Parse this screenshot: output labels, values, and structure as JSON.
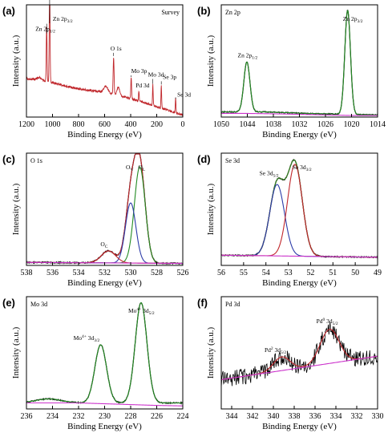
{
  "colors": {
    "survey": "#c0262b",
    "raw": "#000000",
    "envelope": "#c0262b",
    "fit_green": "#228b22",
    "fit_blue": "#2b3aa8",
    "fit_red": "#c0262b",
    "background_line": "#cc33cc"
  },
  "chart_data": [
    {
      "id": "a",
      "type": "line",
      "panel_label": "(a)",
      "title": "Survey",
      "xlabel": "Binding Energy (eV)",
      "ylabel": "Intensity (a.u.)",
      "xlim": [
        1200,
        0
      ],
      "reversed_x": true,
      "xticks": [
        1200,
        1000,
        800,
        600,
        400,
        200,
        0
      ],
      "annotations": [
        {
          "text": "Zn 2p",
          "sub": "3/2",
          "x": 1022
        },
        {
          "text": "Zn 2p",
          "sub": "1/2",
          "x": 1045
        },
        {
          "text": "O 1s",
          "x": 531
        },
        {
          "text": "Mo 3p",
          "x": 396
        },
        {
          "text": "Pd 3d",
          "x": 337
        },
        {
          "text": "Mo 3d",
          "x": 230
        },
        {
          "text": "Se 3p",
          "x": 165
        },
        {
          "text": "Se 3d",
          "x": 55
        }
      ],
      "series": [
        {
          "style": "survey",
          "peaks": [
            [
              1022,
              1.0,
              3
            ],
            [
              1045,
              0.55,
              3
            ],
            [
              531,
              0.36,
              3.5
            ],
            [
              396,
              0.2,
              3
            ],
            [
              337,
              0.1,
              2.5
            ],
            [
              230,
              0.2,
              2.5
            ],
            [
              165,
              0.22,
              2.5
            ],
            [
              55,
              0.14,
              2.5
            ],
            [
              1100,
              0.03,
              20
            ],
            [
              590,
              0.06,
              15
            ],
            [
              495,
              0.08,
              10
            ]
          ],
          "baseline": [
            [
              1200,
              0.37
            ],
            [
              1000,
              0.33
            ],
            [
              800,
              0.27
            ],
            [
              600,
              0.24
            ],
            [
              400,
              0.18
            ],
            [
              200,
              0.1
            ],
            [
              0,
              0.02
            ]
          ],
          "noise": 0.01
        }
      ]
    },
    {
      "id": "b",
      "type": "line",
      "panel_label": "(b)",
      "title": "Zn 2p",
      "xlabel": "Binding Energy (eV)",
      "ylabel": "Intensity (a.u.)",
      "xlim": [
        1050,
        1014
      ],
      "reversed_x": true,
      "xticks": [
        1050,
        1044,
        1038,
        1032,
        1026,
        1020,
        1014
      ],
      "annotations": [
        {
          "text": "Zn 2p",
          "sub": "1/2",
          "x": 1044.0
        },
        {
          "text": "Zn 2p",
          "sub": "3/2",
          "x": 1020.5
        }
      ],
      "series": [
        {
          "style": "raw",
          "peaks": [
            [
              1044.1,
              0.48,
              0.7
            ],
            [
              1020.9,
              1.0,
              0.65
            ]
          ],
          "baseline": [
            [
              1050,
              0.05
            ],
            [
              1040,
              0.05
            ],
            [
              1030,
              0.035
            ],
            [
              1014,
              0.02
            ]
          ],
          "noise": 0.004
        },
        {
          "style": "fit_green",
          "peaks": [
            [
              1044.1,
              0.48,
              0.7
            ],
            [
              1020.9,
              1.0,
              0.65
            ]
          ],
          "baseline": [
            [
              1050,
              0.05
            ],
            [
              1040,
              0.05
            ],
            [
              1030,
              0.035
            ],
            [
              1014,
              0.02
            ]
          ]
        },
        {
          "style": "background_line",
          "peaks": [],
          "baseline": [
            [
              1050,
              0.035
            ],
            [
              1044,
              0.035
            ],
            [
              1036,
              0.03
            ],
            [
              1020,
              0.015
            ],
            [
              1014,
              0.015
            ]
          ]
        }
      ]
    },
    {
      "id": "c",
      "type": "line",
      "panel_label": "(c)",
      "title": "O 1s",
      "xlabel": "Binding Energy (eV)",
      "ylabel": "Intensity (a.u.)",
      "xlim": [
        538,
        526
      ],
      "reversed_x": true,
      "xticks": [
        538,
        536,
        534,
        532,
        530,
        528,
        526
      ],
      "annotations": [
        {
          "text": "O",
          "sub": "L",
          "x": 529.3
        },
        {
          "text": "O",
          "sub": "V",
          "x": 530.0
        },
        {
          "text": "O",
          "sub": "C",
          "x": 531.7
        }
      ],
      "series": [
        {
          "style": "raw",
          "peaks": [
            [
              529.3,
              0.96,
              0.42
            ],
            [
              530.0,
              0.6,
              0.4
            ],
            [
              531.7,
              0.12,
              0.55
            ]
          ],
          "baseline": [
            [
              538,
              0.03
            ],
            [
              526,
              0.02
            ]
          ],
          "noise": 0.006
        },
        {
          "style": "envelope",
          "peaks": [
            [
              529.3,
              0.96,
              0.42
            ],
            [
              530.0,
              0.6,
              0.4
            ],
            [
              531.7,
              0.12,
              0.55
            ]
          ],
          "baseline": [
            [
              538,
              0.03
            ],
            [
              526,
              0.02
            ]
          ]
        },
        {
          "style": "fit_green",
          "peaks": [
            [
              529.3,
              0.96,
              0.42
            ]
          ],
          "baseline": [
            [
              538,
              0.03
            ],
            [
              526,
              0.02
            ]
          ]
        },
        {
          "style": "fit_blue",
          "peaks": [
            [
              530.0,
              0.6,
              0.4
            ]
          ],
          "baseline": [
            [
              538,
              0.03
            ],
            [
              526,
              0.02
            ]
          ]
        },
        {
          "style": "fit_red",
          "peaks": [
            [
              531.7,
              0.12,
              0.55
            ]
          ],
          "baseline": [
            [
              538,
              0.03
            ],
            [
              526,
              0.02
            ]
          ]
        },
        {
          "style": "background_line",
          "peaks": [],
          "baseline": [
            [
              538,
              0.03
            ],
            [
              526,
              0.02
            ]
          ]
        }
      ]
    },
    {
      "id": "d",
      "type": "line",
      "panel_label": "(d)",
      "title": "Se 3d",
      "xlabel": "Binding Energy (eV)",
      "ylabel": "Intensity (a.u.)",
      "xlim": [
        56,
        49
      ],
      "reversed_x": true,
      "xticks": [
        56,
        55,
        54,
        53,
        52,
        51,
        50,
        49
      ],
      "annotations": [
        {
          "text": "Se 3d",
          "sub": "5/2",
          "x": 53.5
        },
        {
          "text": "Se 3d",
          "sub": "3/2",
          "x": 52.6
        }
      ],
      "series": [
        {
          "style": "raw",
          "peaks": [
            [
              53.5,
              0.7,
              0.33
            ],
            [
              52.7,
              0.9,
              0.33
            ]
          ],
          "baseline": [
            [
              56,
              0.1
            ],
            [
              49,
              0.08
            ]
          ],
          "noise": 0.005
        },
        {
          "style": "envelope",
          "peaks": [
            [
              53.5,
              0.7,
              0.33
            ],
            [
              52.7,
              0.9,
              0.33
            ]
          ],
          "baseline": [
            [
              56,
              0.1
            ],
            [
              49,
              0.08
            ]
          ]
        },
        {
          "style": "fit_green",
          "peaks": [
            [
              53.5,
              0.7,
              0.33
            ],
            [
              52.7,
              0.9,
              0.33
            ]
          ],
          "baseline": [
            [
              56,
              0.1
            ],
            [
              49,
              0.08
            ]
          ]
        },
        {
          "style": "fit_blue",
          "peaks": [
            [
              53.5,
              0.7,
              0.33
            ]
          ],
          "baseline": [
            [
              56,
              0.1
            ],
            [
              49,
              0.08
            ]
          ]
        },
        {
          "style": "fit_red",
          "peaks": [
            [
              52.7,
              0.9,
              0.33
            ]
          ],
          "baseline": [
            [
              56,
              0.1
            ],
            [
              49,
              0.08
            ]
          ]
        },
        {
          "style": "background_line",
          "peaks": [],
          "baseline": [
            [
              56,
              0.1
            ],
            [
              49,
              0.08
            ]
          ]
        }
      ]
    },
    {
      "id": "e",
      "type": "line",
      "panel_label": "(e)",
      "title": "Mo 3d",
      "xlabel": "Binding Energy (eV)",
      "ylabel": "Intensity (a.u.)",
      "xlim": [
        236,
        224
      ],
      "reversed_x": true,
      "xticks": [
        236,
        234,
        232,
        230,
        228,
        226,
        224
      ],
      "annotations": [
        {
          "text": "Mo",
          "sup": "4+",
          "rest": " 3d",
          "sub": "3/2",
          "x": 230.3
        },
        {
          "text": "Mo",
          "sup": "4+",
          "rest": " 3d",
          "sub": "5/2",
          "x": 227.2
        }
      ],
      "series": [
        {
          "style": "raw",
          "peaks": [
            [
              230.3,
              0.58,
              0.45
            ],
            [
              227.2,
              1.0,
              0.45
            ],
            [
              234.3,
              0.04,
              1.0
            ]
          ],
          "baseline": [
            [
              236,
              0.06
            ],
            [
              224,
              0.06
            ]
          ],
          "noise": 0.005
        },
        {
          "style": "fit_green",
          "peaks": [
            [
              230.3,
              0.58,
              0.45
            ],
            [
              227.2,
              1.0,
              0.45
            ],
            [
              234.3,
              0.04,
              1.0
            ]
          ],
          "baseline": [
            [
              236,
              0.06
            ],
            [
              224,
              0.06
            ]
          ]
        },
        {
          "style": "background_line",
          "peaks": [],
          "baseline": [
            [
              236,
              0.06
            ],
            [
              232,
              0.06
            ],
            [
              226,
              0.035
            ],
            [
              224,
              0.03
            ]
          ]
        }
      ]
    },
    {
      "id": "f",
      "type": "line",
      "panel_label": "(f)",
      "title": "Pd 3d",
      "xlabel": "Binding Energy (eV)",
      "ylabel": "Intensity (a.u.)",
      "xlim": [
        345,
        330
      ],
      "reversed_x": true,
      "xticks": [
        344,
        342,
        340,
        338,
        336,
        334,
        332,
        330
      ],
      "annotations": [
        {
          "text": "Pd",
          "sup": "2",
          "rest": " 3d",
          "sub": "5/2",
          "x": 339.0
        },
        {
          "text": "Pd",
          "sup": "0",
          "rest": " 3d",
          "sub": "5/2",
          "x": 334.8
        }
      ],
      "series": [
        {
          "style": "raw",
          "peaks": [
            [
              339.2,
              0.14,
              0.8
            ],
            [
              334.6,
              0.35,
              0.9
            ]
          ],
          "baseline": [
            [
              345,
              0.3
            ],
            [
              330,
              0.54
            ]
          ],
          "noise": 0.085
        },
        {
          "style": "envelope",
          "peaks": [
            [
              339.2,
              0.14,
              0.8
            ],
            [
              334.6,
              0.35,
              0.9
            ]
          ],
          "baseline": [
            [
              345,
              0.3
            ],
            [
              330,
              0.54
            ]
          ]
        },
        {
          "style": "background_line",
          "peaks": [],
          "baseline": [
            [
              345,
              0.3
            ],
            [
              330,
              0.54
            ]
          ]
        }
      ]
    }
  ]
}
